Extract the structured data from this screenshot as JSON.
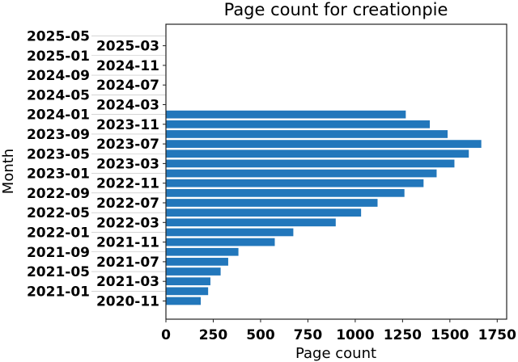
{
  "chart_data": {
    "type": "bar",
    "orientation": "horizontal",
    "title": "Page count for creationpie",
    "xlabel": "Page count",
    "ylabel": "Month",
    "xlim": [
      0,
      1800
    ],
    "xticks": [
      0,
      250,
      500,
      750,
      1000,
      1250,
      1500,
      1750
    ],
    "grid": false,
    "bar_color": "#2277bb",
    "categories": [
      "2020-11",
      "2021-01",
      "2021-03",
      "2021-05",
      "2021-07",
      "2021-09",
      "2021-11",
      "2022-01",
      "2022-03",
      "2022-05",
      "2022-07",
      "2022-09",
      "2022-11",
      "2023-01",
      "2023-03",
      "2023-05",
      "2023-07",
      "2023-09",
      "2023-11",
      "2024-01",
      "2024-03",
      "2024-05",
      "2024-07",
      "2024-09",
      "2024-11",
      "2025-01",
      "2025-03",
      "2025-05"
    ],
    "values": [
      184,
      223,
      235,
      289,
      329,
      383,
      575,
      673,
      897,
      1031,
      1118,
      1260,
      1361,
      1430,
      1524,
      1600,
      1666,
      1488,
      1394,
      1267,
      0,
      0,
      0,
      0,
      0,
      0,
      0,
      0
    ]
  }
}
